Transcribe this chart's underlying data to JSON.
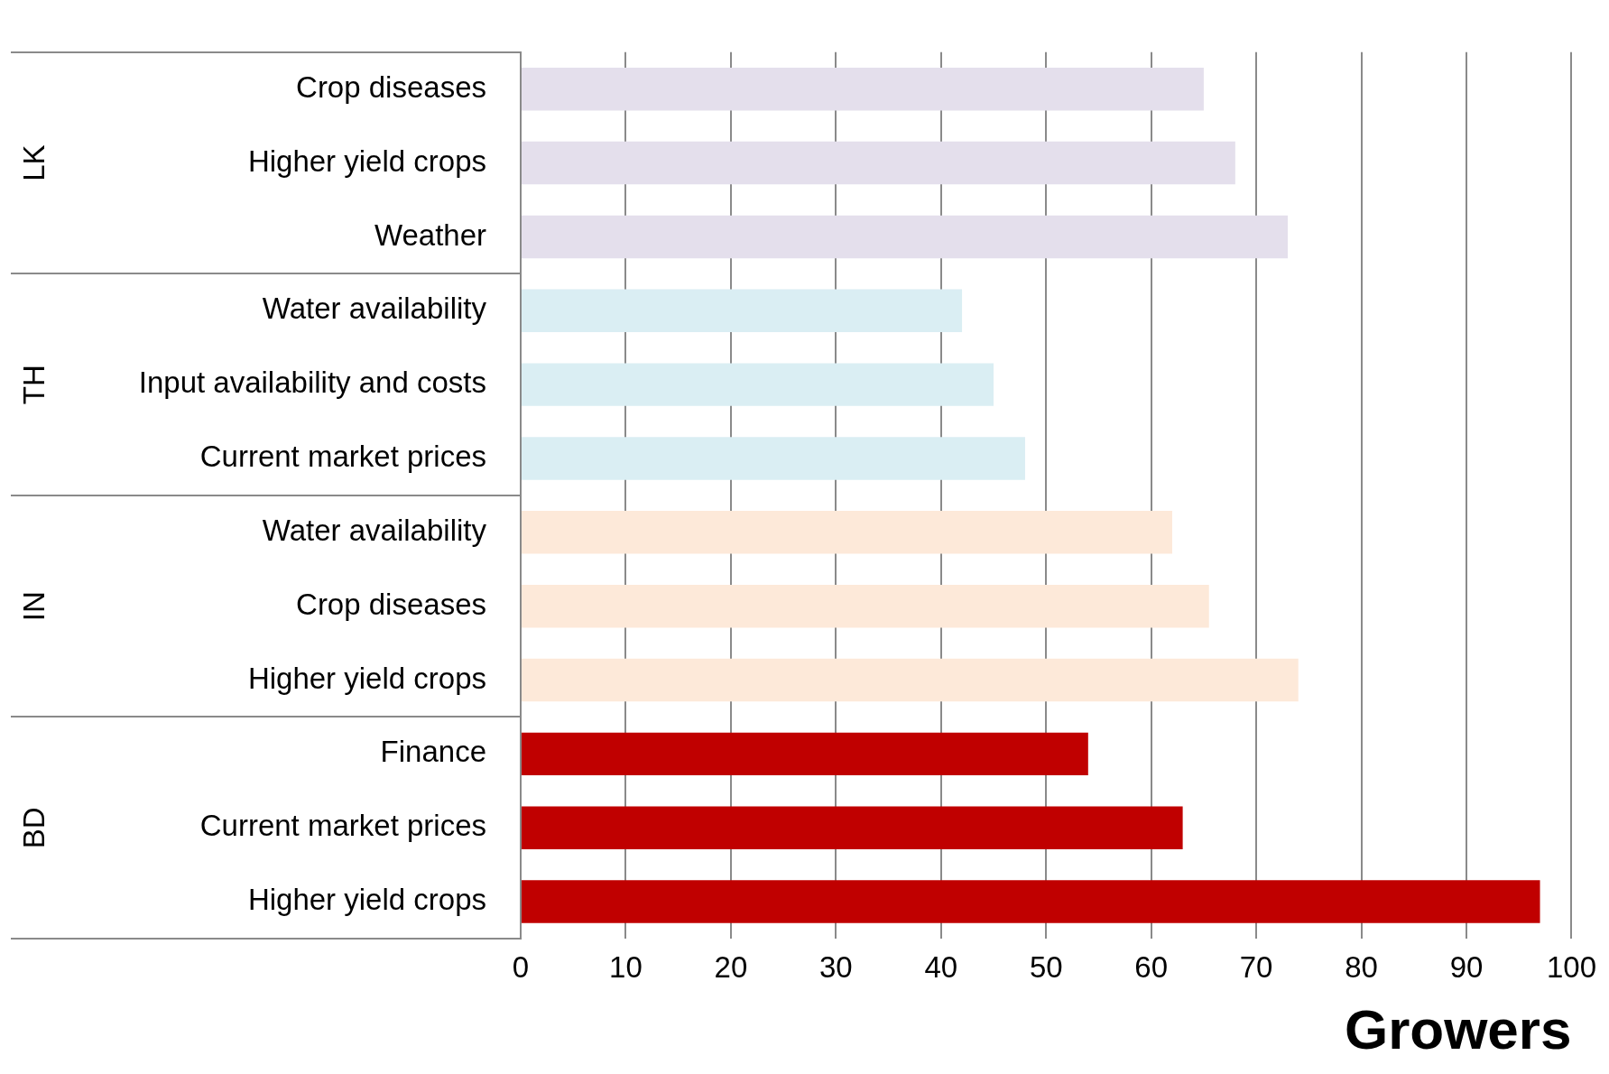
{
  "chart_data": {
    "type": "bar",
    "orientation": "horizontal",
    "xlabel": "Growers",
    "categories": [
      "Crop diseases",
      "Higher yield crops",
      "Weather",
      "Water availability",
      "Input availability and costs",
      "Current market prices",
      "Water availability",
      "Crop diseases",
      "Higher yield crops",
      "Finance",
      "Current market prices",
      "Higher yield crops"
    ],
    "series": [
      {
        "color": "#e4dfec",
        "values": [
          65,
          68,
          73,
          null,
          null,
          null,
          null,
          null,
          null,
          null,
          null,
          null
        ]
      },
      {
        "color": "#daeef3",
        "values": [
          null,
          null,
          null,
          42,
          45,
          48,
          null,
          null,
          null,
          null,
          null,
          null
        ]
      },
      {
        "color": "#fde9d9",
        "values": [
          null,
          null,
          null,
          null,
          null,
          null,
          62,
          65.5,
          74,
          null,
          null,
          null
        ]
      },
      {
        "color": "#c00000",
        "values": [
          null,
          null,
          null,
          null,
          null,
          null,
          null,
          null,
          null,
          54,
          63,
          97
        ]
      }
    ],
    "xlim": [
      0,
      100
    ],
    "xticks": [
      0,
      10,
      20,
      30,
      40,
      50,
      60,
      70,
      80,
      90,
      100
    ],
    "annotations": [
      "LK",
      "TH",
      "IN",
      "BD"
    ],
    "grid": "x",
    "legend": false
  }
}
